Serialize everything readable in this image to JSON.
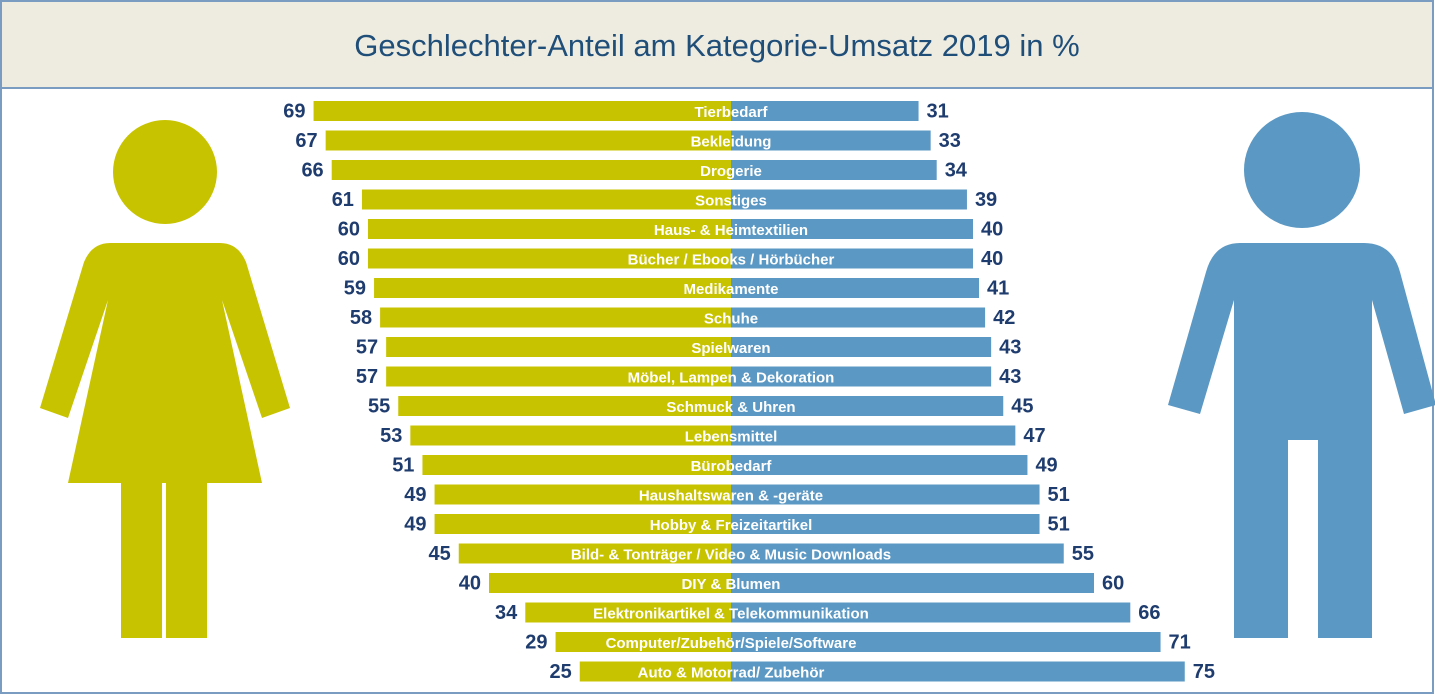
{
  "chart_data": {
    "type": "diverging-bar",
    "title": "Geschlechter-Anteil am Kategorie-Umsatz 2019 in %",
    "categories": [
      "Tierbedarf",
      "Bekleidung",
      "Drogerie",
      "Sonstiges",
      "Haus- & Heimtextilien",
      "Bücher / Ebooks / Hörbücher",
      "Medikamente",
      "Schuhe",
      "Spielwaren",
      "Möbel, Lampen & Dekoration",
      "Schmuck & Uhren",
      "Lebensmittel",
      "Bürobedarf",
      "Haushaltswaren & -geräte",
      "Hobby & Freizeitartikel",
      "Bild- & Tonträger / Video & Music Downloads",
      "DIY & Blumen",
      "Elektronikartikel & Telekommunikation",
      "Computer/Zubehör/Spiele/Software",
      "Auto & Motorrad/ Zubehör"
    ],
    "series": [
      {
        "color": "#c8c300",
        "values": [
          69,
          67,
          66,
          61,
          60,
          60,
          59,
          58,
          57,
          57,
          55,
          53,
          51,
          49,
          49,
          45,
          40,
          34,
          29,
          25
        ]
      },
      {
        "color": "#5b98c3",
        "values": [
          31,
          33,
          34,
          39,
          40,
          40,
          41,
          42,
          43,
          43,
          45,
          47,
          49,
          51,
          51,
          55,
          60,
          66,
          71,
          75
        ]
      }
    ]
  }
}
